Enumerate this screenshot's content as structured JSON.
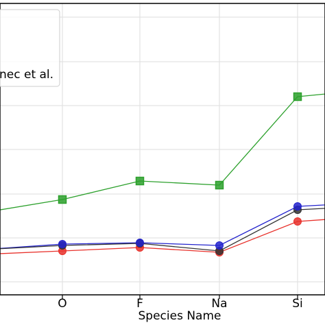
{
  "chart_data": {
    "type": "line",
    "title": "",
    "xlabel": "Species Name",
    "ylabel": "",
    "categories": [
      "",
      "O",
      "F",
      "Na",
      "Si",
      ""
    ],
    "grid": true,
    "legend_placement": "top-left",
    "legend_entries": [
      "nec et al."
    ],
    "series": [
      {
        "color": "#2ca02c",
        "marker": "square",
        "values": [
          310,
          291,
          264,
          270,
          141,
          130
        ]
      },
      {
        "color": "#2222cc",
        "marker": "circle",
        "values": [
          364,
          356,
          354,
          358,
          301,
          295
        ]
      },
      {
        "color": "#333333",
        "marker": "circle",
        "values": [
          364,
          358,
          355,
          366,
          306,
          300
        ]
      },
      {
        "color": "#e8302a",
        "marker": "circle",
        "values": [
          371,
          366,
          361,
          368,
          323,
          315
        ]
      }
    ],
    "ylim": [
      440,
      0
    ]
  }
}
